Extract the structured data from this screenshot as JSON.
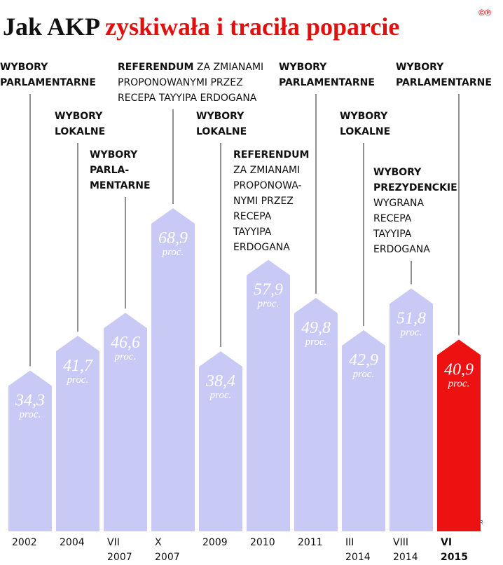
{
  "chart_data": {
    "type": "bar",
    "title": "Jak AKP",
    "subtitle": "zyskiwała i traciła poparcie",
    "logo": "©℗",
    "credit": "JR",
    "unit": "proc.",
    "categories": [
      [
        "2002"
      ],
      [
        "2004"
      ],
      [
        "VII",
        "2007"
      ],
      [
        "X",
        "2007"
      ],
      [
        "2009"
      ],
      [
        "2010"
      ],
      [
        "2011"
      ],
      [
        "III",
        "2014"
      ],
      [
        "VIII",
        "2014"
      ],
      [
        "VI",
        "2015"
      ]
    ],
    "values": [
      34.3,
      41.7,
      46.6,
      68.9,
      38.4,
      57.9,
      49.8,
      42.9,
      51.8,
      40.9
    ],
    "value_labels": [
      "34,3",
      "41,7",
      "46,6",
      "68,9",
      "38,4",
      "57,9",
      "49,8",
      "42,9",
      "51,8",
      "40,9"
    ],
    "colors": [
      "#c9c9f6",
      "#c9c9f6",
      "#c9c9f6",
      "#c9c9f6",
      "#c9c9f6",
      "#c9c9f6",
      "#c9c9f6",
      "#c9c9f6",
      "#c9c9f6",
      "#ee1111"
    ],
    "annotations": [
      [
        {
          "b": "WYBORY"
        },
        {
          "b": "PARLAMENTARNE"
        }
      ],
      [
        {
          "b": "WYBORY"
        },
        {
          "b": "LOKALNE"
        }
      ],
      [
        {
          "b": "WYBORY"
        },
        {
          "b": "PARLA-"
        },
        {
          "b": "MENTARNE"
        }
      ],
      [
        {
          "b": "REFERENDUM",
          "t": "ZA ZMIANAMI"
        },
        {
          "t": "PROPONOWANYMI PRZEZ"
        },
        {
          "t": "RECEPA TAYYIPA ERDOGANA"
        }
      ],
      [
        {
          "b": "WYBORY"
        },
        {
          "b": "LOKALNE"
        }
      ],
      [
        {
          "b": "REFERENDUM"
        },
        {
          "t": "ZA ZMIANAMI"
        },
        {
          "t": "PROPONOWA-"
        },
        {
          "t": "NYMI PRZEZ"
        },
        {
          "t": "RECEPA"
        },
        {
          "t": "TAYYIPA"
        },
        {
          "t": "ERDOGANA"
        }
      ],
      [
        {
          "b": "WYBORY"
        },
        {
          "b": "PARLAMENTARNE"
        }
      ],
      [
        {
          "b": "WYBORY"
        },
        {
          "b": "LOKALNE"
        }
      ],
      [
        {
          "b": "WYBORY"
        },
        {
          "b": "PREZYDENCKIE"
        },
        {
          "t": "WYGRANA"
        },
        {
          "t": "RECEPA"
        },
        {
          "t": "TAYYIPA"
        },
        {
          "t": "ERDOGANA"
        }
      ],
      [
        {
          "b": "WYBORY"
        },
        {
          "b": "PARLAMENTARNE"
        }
      ]
    ]
  }
}
